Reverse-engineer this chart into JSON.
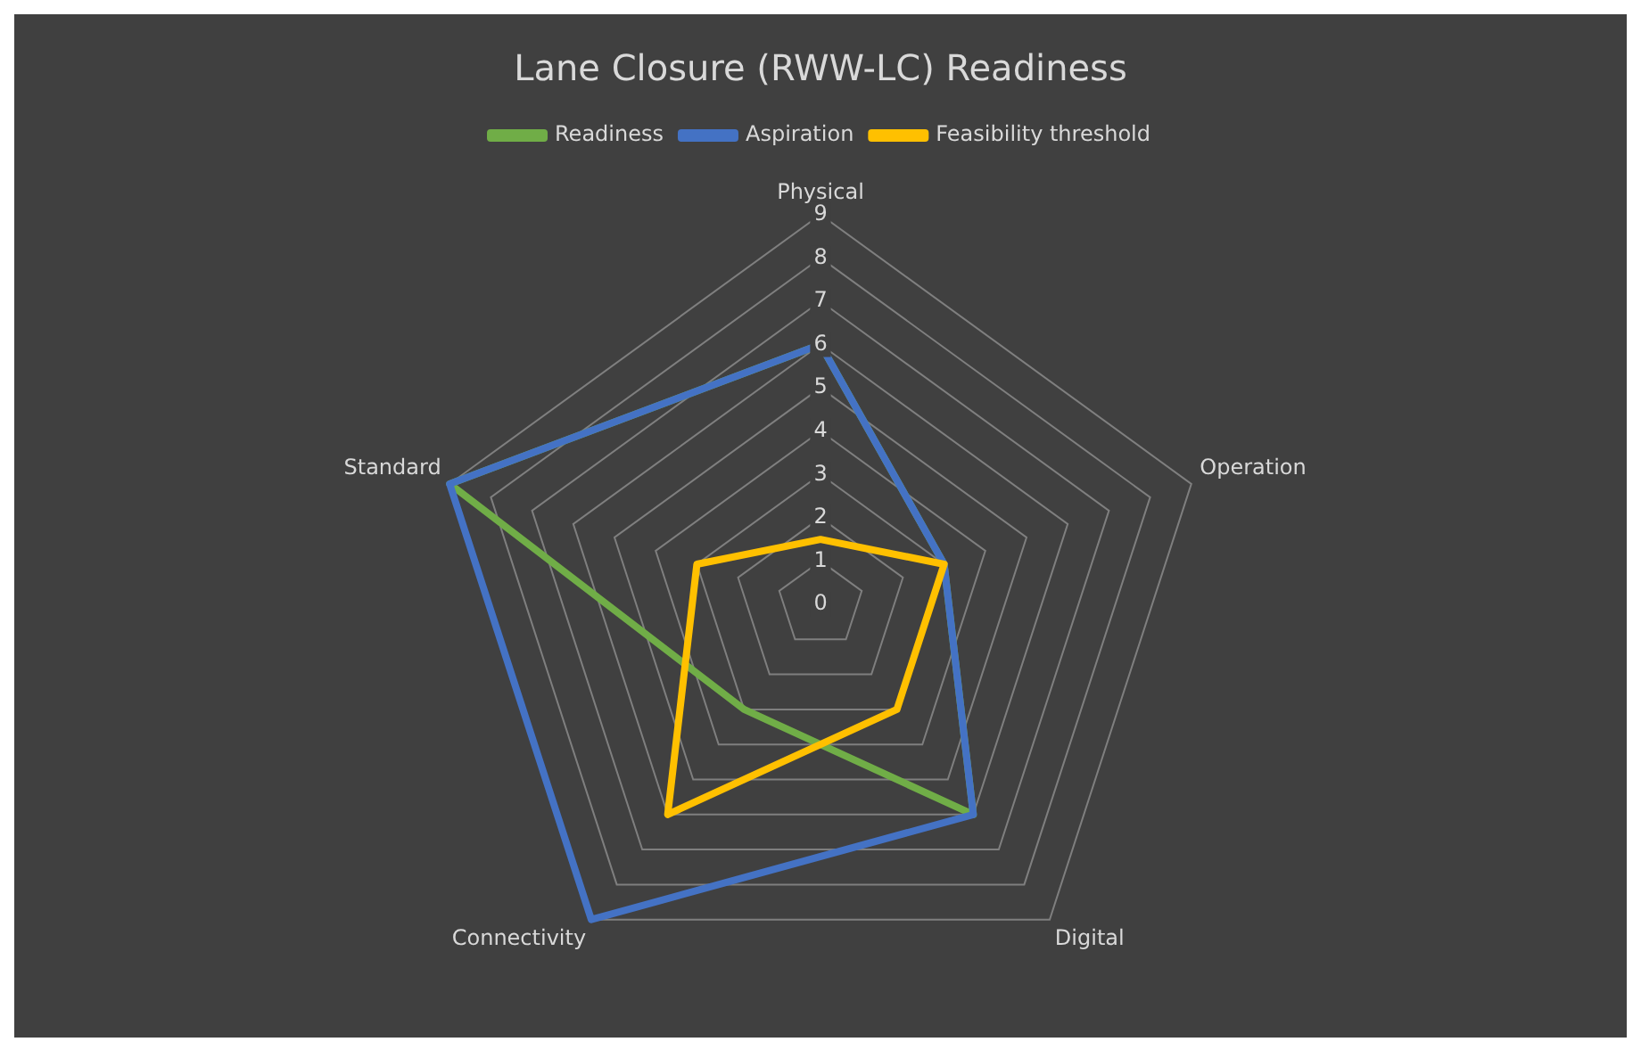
{
  "chart_data": {
    "type": "radar",
    "title": "Lane Closure (RWW-LC) Readiness",
    "categories": [
      "Physical",
      "Operation",
      "Digital",
      "Connectivity",
      "Standard"
    ],
    "series": [
      {
        "name": "Readiness",
        "color": "#70ad47",
        "values": [
          6,
          3,
          6,
          3,
          9
        ]
      },
      {
        "name": "Aspiration",
        "color": "#4472c4",
        "values": [
          6,
          3,
          6,
          9,
          9
        ]
      },
      {
        "name": "Feasibility threshold",
        "color": "#ffc000",
        "values": [
          1.5,
          3,
          3,
          6,
          3
        ]
      }
    ],
    "ylim": [
      0,
      9
    ],
    "yticks": [
      0,
      1,
      2,
      3,
      4,
      5,
      6,
      7,
      8,
      9
    ],
    "grid": true,
    "legend": "top",
    "marker": "none"
  }
}
